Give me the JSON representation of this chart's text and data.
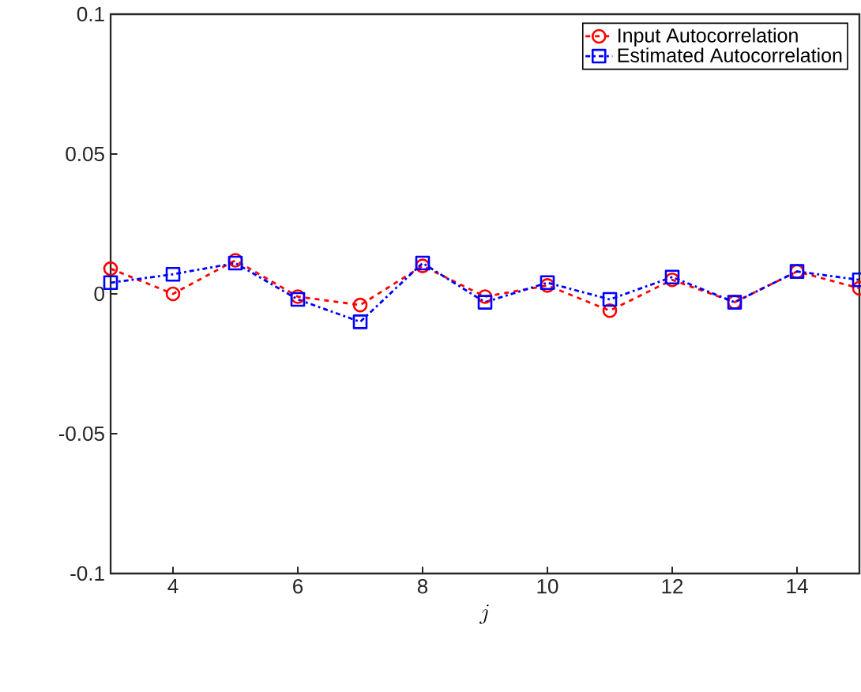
{
  "chart_data": {
    "type": "line",
    "xlabel": "j",
    "x": [
      3,
      4,
      5,
      6,
      7,
      8,
      9,
      10,
      11,
      12,
      13,
      14,
      15
    ],
    "series": [
      {
        "name": "Input Autocorrelation",
        "color": "#ff0000",
        "marker": "circle",
        "line_style": "dashed",
        "values": [
          0.009,
          0.0,
          0.012,
          -0.001,
          -0.004,
          0.01,
          -0.001,
          0.003,
          -0.006,
          0.005,
          -0.003,
          0.008,
          0.002
        ]
      },
      {
        "name": "Estimated Autocorrelation",
        "color": "#0000ff",
        "marker": "square",
        "line_style": "dashdot",
        "values": [
          0.004,
          0.007,
          0.011,
          -0.002,
          -0.01,
          0.011,
          -0.003,
          0.004,
          -0.002,
          0.006,
          -0.003,
          0.008,
          0.005
        ]
      }
    ],
    "xlim": [
      3,
      15
    ],
    "ylim": [
      -0.1,
      0.1
    ],
    "xticks": [
      4,
      6,
      8,
      10,
      12,
      14
    ],
    "yticks": [
      -0.1,
      -0.05,
      0,
      0.05,
      0.1
    ],
    "legend": "top right",
    "grid": false
  }
}
